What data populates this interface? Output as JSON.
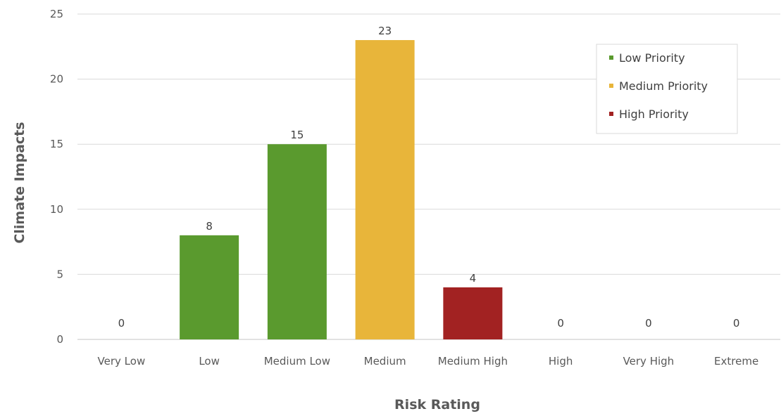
{
  "chart_data": {
    "type": "bar",
    "xlabel": "Risk Rating",
    "ylabel": "Climate Impacts",
    "ylim": [
      0,
      25
    ],
    "yticks": [
      "0",
      "5",
      "10",
      "15",
      "20",
      "25"
    ],
    "grid": true,
    "legend_position": "top-right",
    "categories": [
      "Very Low",
      "Low",
      "Medium Low",
      "Medium",
      "Medium High",
      "High",
      "Very High",
      "Extreme"
    ],
    "values": [
      0,
      8,
      15,
      23,
      4,
      0,
      0,
      0
    ],
    "data_labels": [
      "0",
      "8",
      "15",
      "23",
      "4",
      "0",
      "0",
      "0"
    ],
    "bar_priority": [
      "low",
      "low",
      "low",
      "medium",
      "high",
      "high",
      "high",
      "high"
    ],
    "series": [
      {
        "key": "low",
        "name": "Low Priority",
        "color": "#5a9a2e"
      },
      {
        "key": "medium",
        "name": "Medium Priority",
        "color": "#e8b53a"
      },
      {
        "key": "high",
        "name": "High Priority",
        "color": "#a22222"
      }
    ]
  }
}
